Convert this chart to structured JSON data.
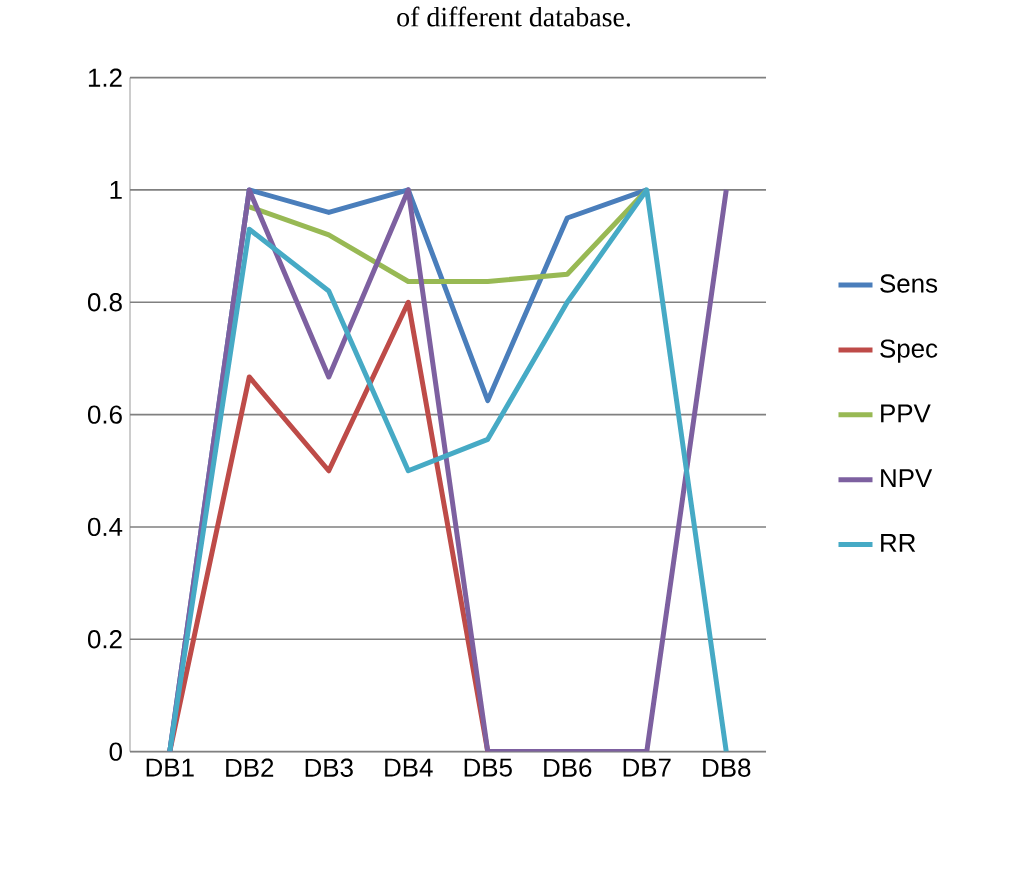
{
  "chart_data": {
    "type": "line",
    "annotations": [
      "of different database."
    ],
    "categories": [
      "DB1",
      "DB2",
      "DB3",
      "DB4",
      "DB5",
      "DB6",
      "DB7",
      "DB8"
    ],
    "series": [
      {
        "name": "Sens",
        "color": "#4a7ebb",
        "values": [
          0,
          1,
          0.96,
          1,
          0.625,
          0.95,
          1,
          null
        ]
      },
      {
        "name": "Spec",
        "color": "#be4b48",
        "values": [
          0,
          0.667,
          0.5,
          0.8,
          0,
          null,
          null,
          null
        ]
      },
      {
        "name": "PPV",
        "color": "#98b954",
        "values": [
          null,
          0.97,
          0.92,
          0.837,
          0.837,
          0.85,
          1,
          null
        ]
      },
      {
        "name": "NPV",
        "color": "#7d60a0",
        "values": [
          0,
          1,
          0.667,
          1,
          0,
          0,
          0,
          1
        ]
      },
      {
        "name": "RR",
        "color": "#46aac5",
        "values": [
          0,
          0.93,
          0.82,
          0.5,
          0.556,
          0.8,
          1,
          0
        ]
      }
    ],
    "ylim": [
      0,
      1.2
    ],
    "yticks": [
      0,
      0.2,
      0.4,
      0.6,
      0.8,
      1,
      1.2
    ],
    "grid": "y",
    "legend": "right",
    "marker": "none",
    "line_style": "solid"
  }
}
